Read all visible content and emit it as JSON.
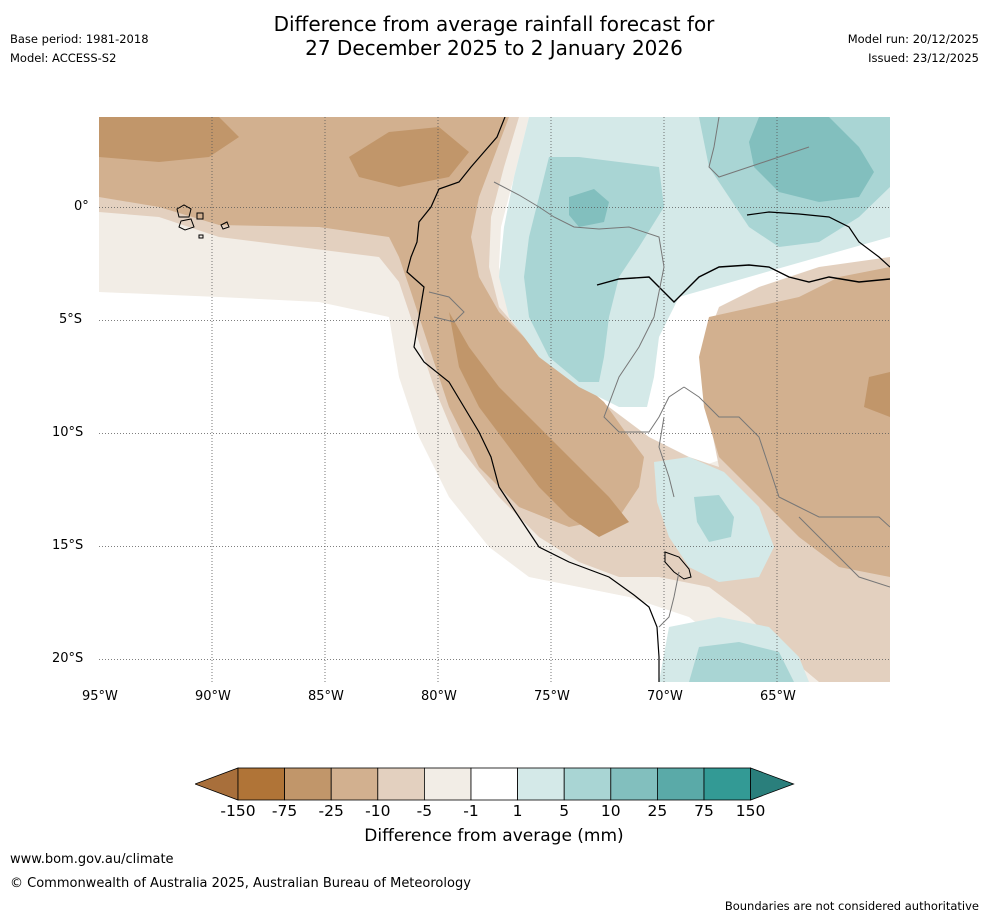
{
  "header": {
    "title_line1": "Difference from average rainfall forecast for",
    "title_line2": "27 December 2025 to 2 January 2026",
    "base_period": "Base period: 1981-2018",
    "model": "Model: ACCESS-S2",
    "model_run": "Model run: 20/12/2025",
    "issued": "Issued: 23/12/2025"
  },
  "map": {
    "lon_ticks": [
      "95°W",
      "90°W",
      "85°W",
      "80°W",
      "75°W",
      "70°W",
      "65°W"
    ],
    "lat_ticks": [
      "0°",
      "5°S",
      "10°S",
      "15°S",
      "20°S"
    ],
    "lon_range": [
      -95,
      -60
    ],
    "lat_range": [
      -21,
      4
    ]
  },
  "colorbar": {
    "title": "Difference from average (mm)",
    "labels": [
      "-150",
      "-75",
      "-25",
      "-10",
      "-5",
      "-1",
      "1",
      "5",
      "10",
      "25",
      "75",
      "150"
    ],
    "colors": [
      "#a86f3b",
      "#b07437",
      "#c1966a",
      "#d2b08f",
      "#e3d0bf",
      "#f2ede6",
      "#ffffff",
      "#d4e9e8",
      "#a9d5d4",
      "#82bfbe",
      "#5aaaa8",
      "#339a95",
      "#2a7f7c"
    ]
  },
  "footer": {
    "url": "www.bom.gov.au/climate",
    "copyright": "© Commonwealth of Australia 2025, Australian Bureau of Meteorology",
    "disclaimer": "Boundaries are not considered authoritative"
  }
}
